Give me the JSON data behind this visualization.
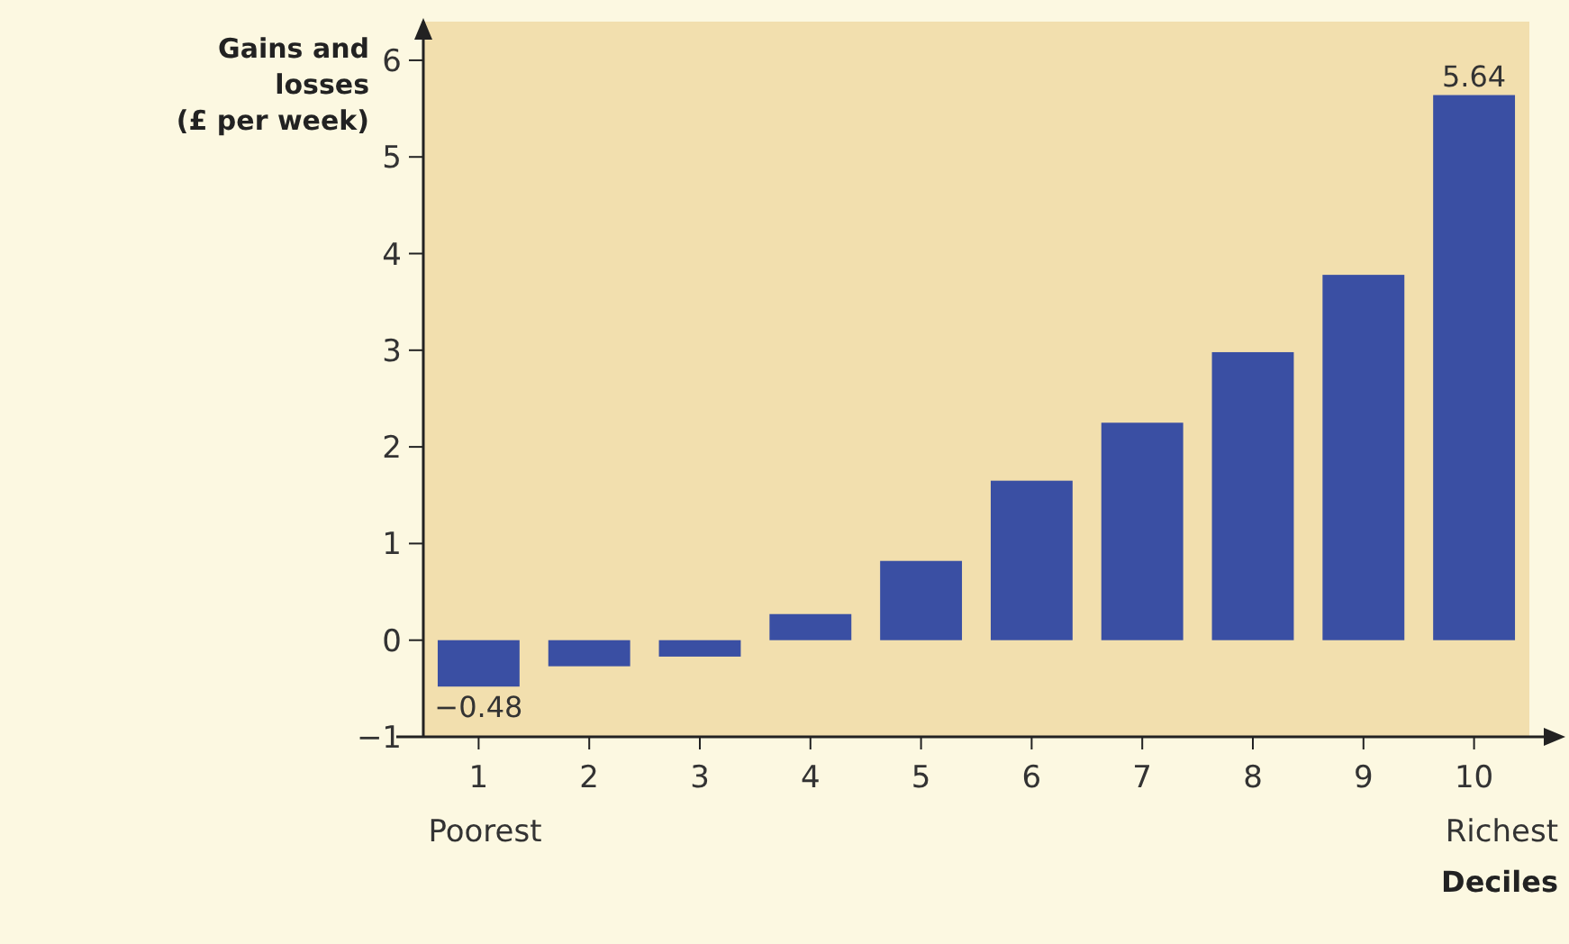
{
  "chart_data": {
    "type": "bar",
    "ylabel": "Gains and\nlosses\n(£ per week)",
    "xlabel": "Deciles",
    "categories": [
      "1",
      "2",
      "3",
      "4",
      "5",
      "6",
      "7",
      "8",
      "9",
      "10"
    ],
    "values": [
      -0.48,
      -0.27,
      -0.17,
      0.27,
      0.82,
      1.65,
      2.25,
      2.98,
      3.78,
      5.64
    ],
    "value_labels": [
      "−0.48",
      null,
      null,
      null,
      null,
      null,
      null,
      null,
      null,
      "5.64"
    ],
    "color": "#3a4fa3",
    "annotations": [
      "Poorest",
      "Richest"
    ],
    "ylim": [
      -1,
      6.4
    ],
    "yticks": [
      -1,
      0,
      1,
      2,
      3,
      4,
      5,
      6
    ],
    "grid": false
  }
}
